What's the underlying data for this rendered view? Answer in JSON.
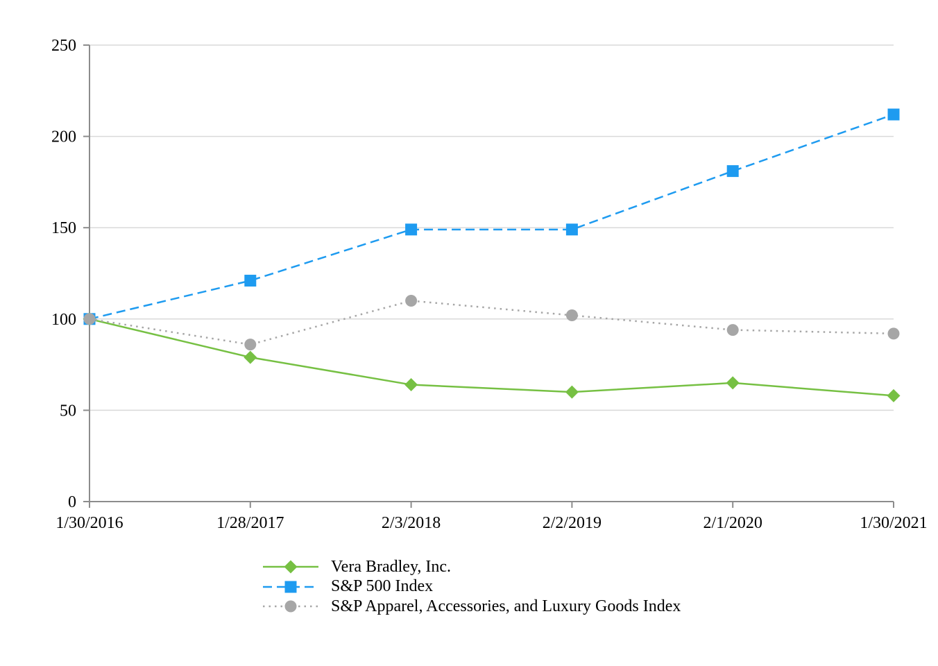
{
  "chart_data": {
    "type": "line",
    "title": "",
    "xlabel": "",
    "ylabel": "",
    "categories": [
      "1/30/2016",
      "1/28/2017",
      "2/3/2018",
      "2/2/2019",
      "2/1/2020",
      "1/30/2021"
    ],
    "yticks": [
      0,
      50,
      100,
      150,
      200,
      250
    ],
    "ylim": [
      0,
      250
    ],
    "grid": "horizontal-only",
    "legend_position": "bottom-left",
    "series": [
      {
        "name": "Vera Bradley, Inc.",
        "color": "#76C043",
        "line_style": "solid",
        "marker": "diamond",
        "values": [
          100,
          79,
          64,
          60,
          65,
          58
        ]
      },
      {
        "name": "S&P 500 Index",
        "color": "#1E9BF0",
        "line_style": "dashed",
        "marker": "square",
        "values": [
          100,
          121,
          149,
          149,
          181,
          212
        ]
      },
      {
        "name": "S&P Apparel, Accessories, and Luxury Goods Index",
        "color": "#A6A6A6",
        "line_style": "dotted",
        "marker": "circle",
        "values": [
          100,
          86,
          110,
          102,
          94,
          92
        ]
      }
    ],
    "style": {
      "gridline_color": "#D9D9D9",
      "axis_color": "#8C8C8C",
      "text_color": "#000000"
    }
  }
}
